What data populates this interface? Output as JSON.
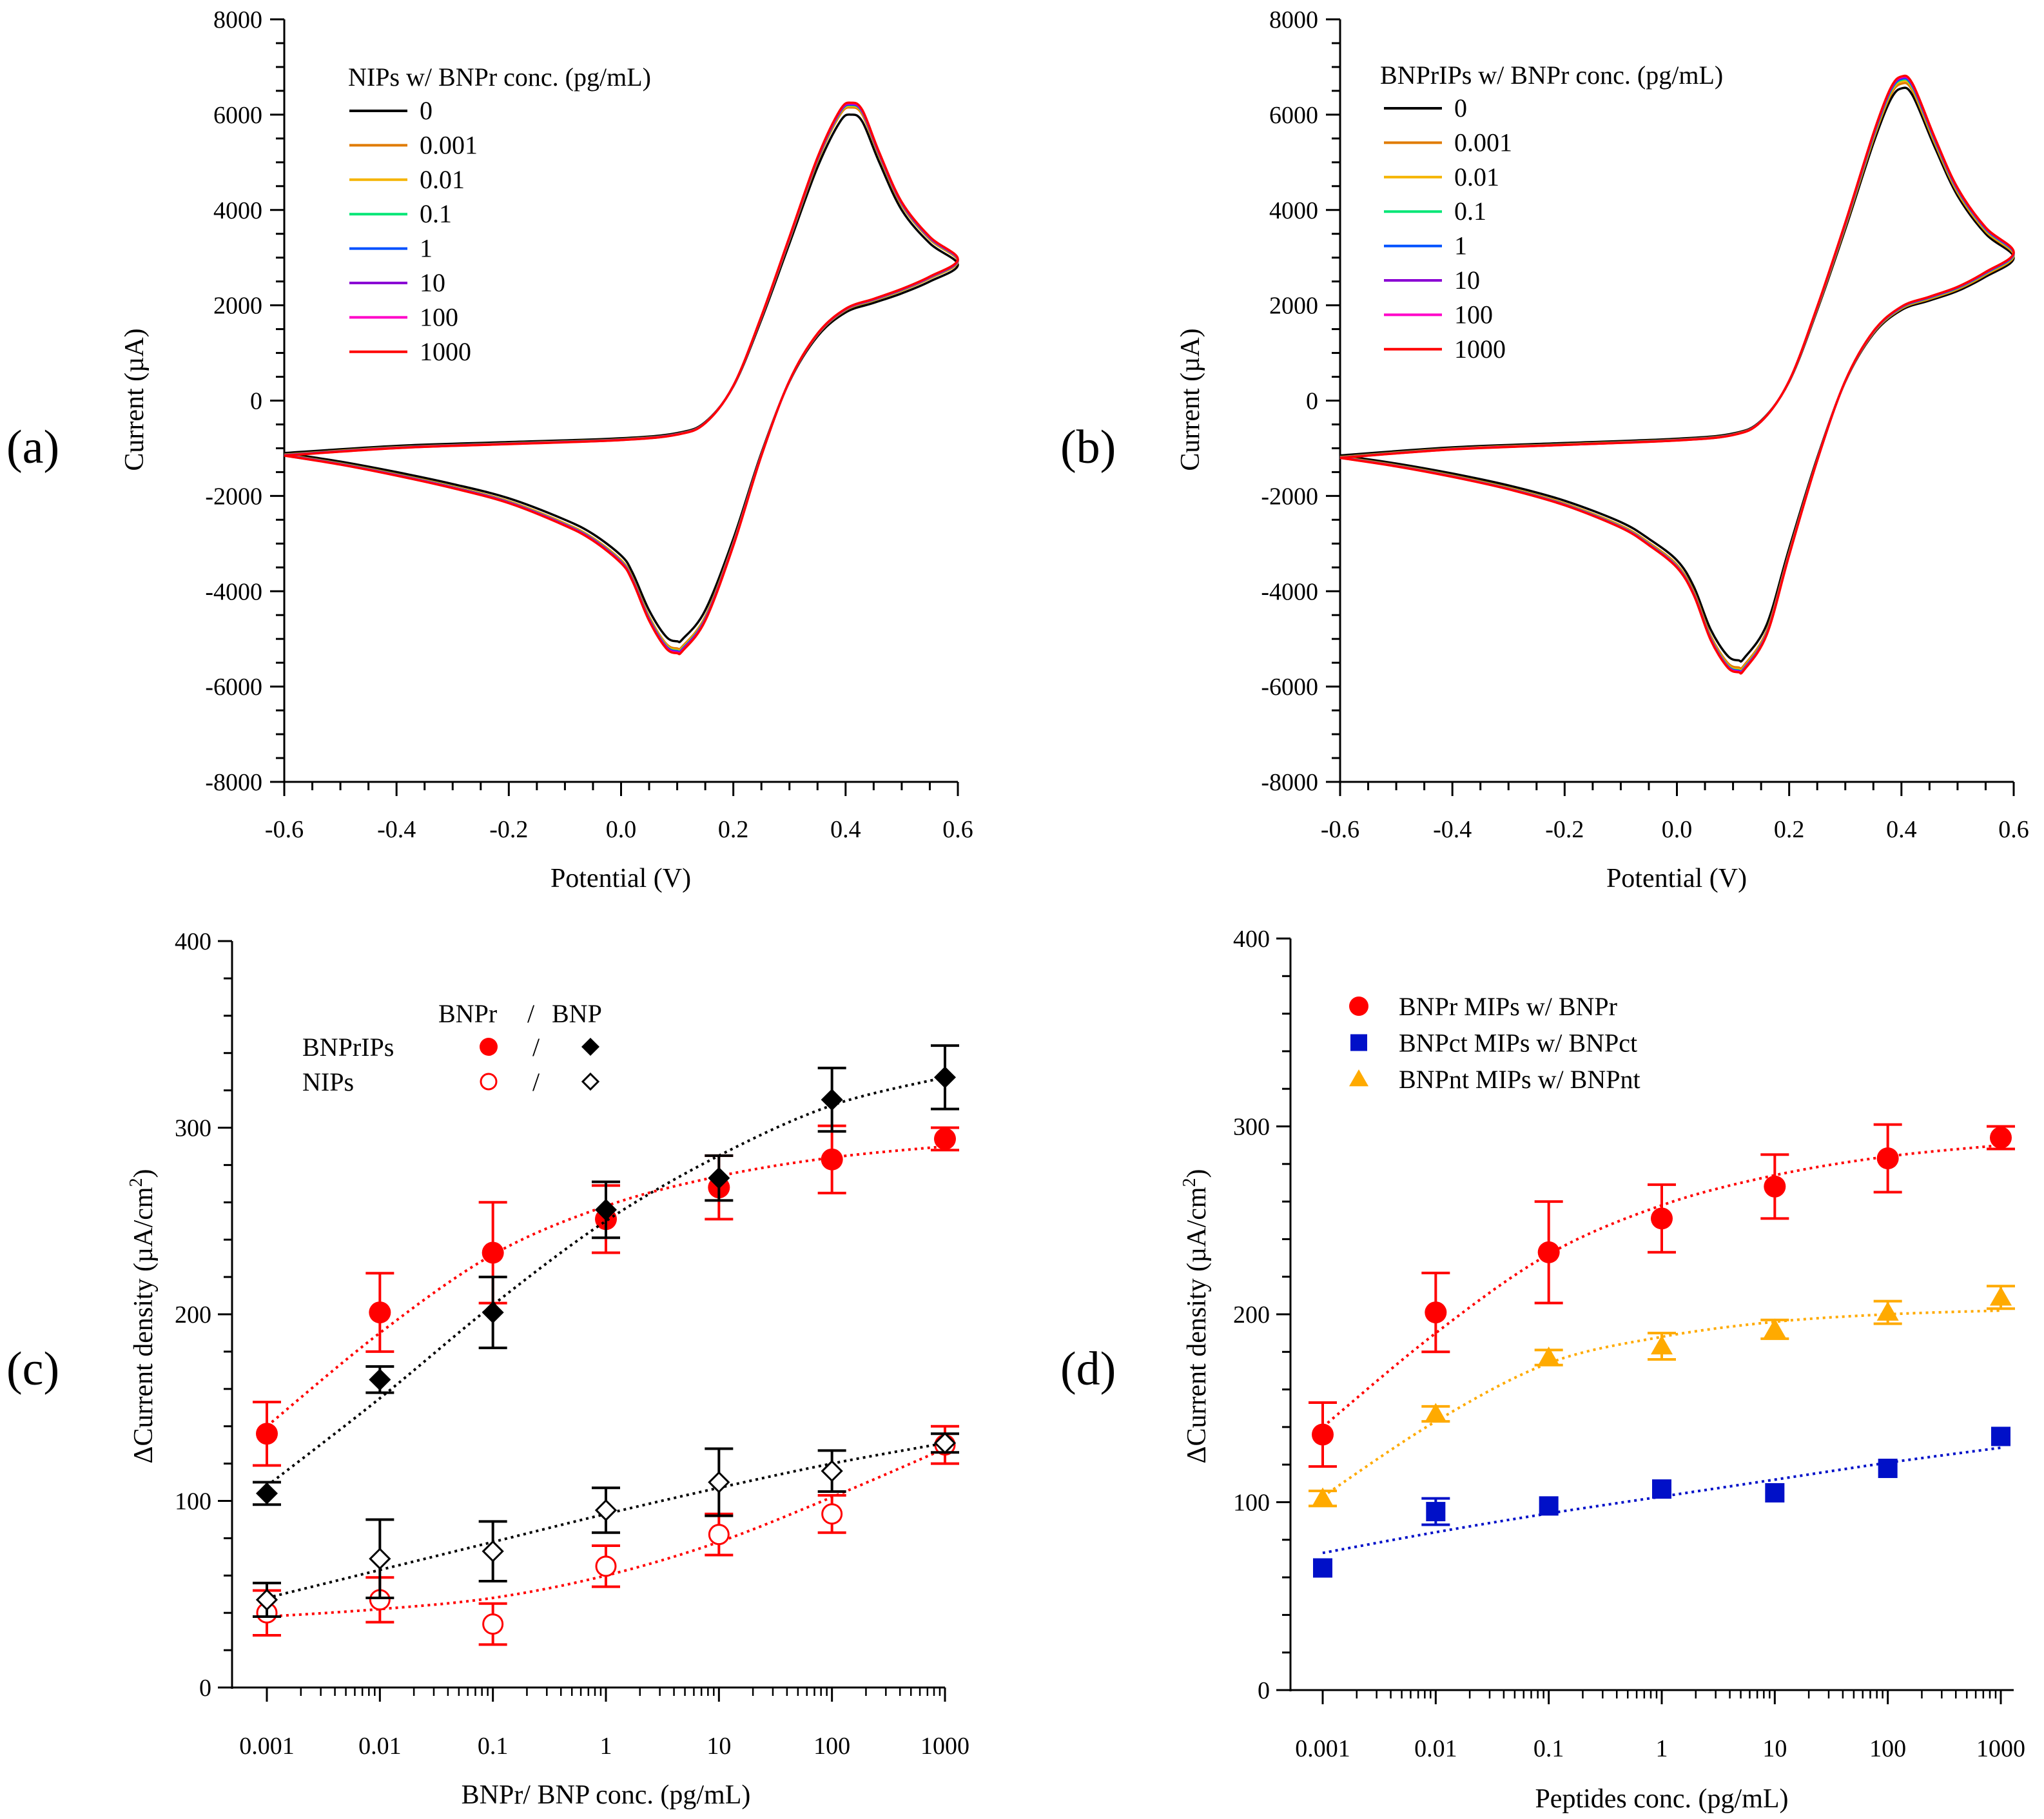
{
  "chart_data": [
    {
      "id": "a",
      "type": "line",
      "panel_label": "(a)",
      "xlabel": "Potential (V)",
      "ylabel": "Current (µA)",
      "xlim": [
        -0.6,
        0.6
      ],
      "ylim": [
        -8000,
        8000
      ],
      "xticks": [
        -0.6,
        -0.4,
        -0.2,
        0.0,
        0.2,
        0.4,
        0.6
      ],
      "xtick_labels": [
        "-0.6",
        "-0.4",
        "-0.2",
        "0.0",
        "0.2",
        "0.4",
        "0.6"
      ],
      "yticks": [
        -8000,
        -6000,
        -4000,
        -2000,
        0,
        2000,
        4000,
        6000,
        8000
      ],
      "ytick_labels": [
        "-8000",
        "-6000",
        "-4000",
        "-2000",
        "0",
        "2000",
        "4000",
        "6000",
        "8000"
      ],
      "legend_title": "NIPs w/ BNPr conc. (pg/mL)",
      "series": [
        {
          "name": "0",
          "color": "#000000",
          "anodic_peak": 6000,
          "cathodic_peak": -5050
        },
        {
          "name": "0.001",
          "color": "#e07b00",
          "anodic_peak": 6150,
          "cathodic_peak": -5200
        },
        {
          "name": "0.01",
          "color": "#f5b400",
          "anodic_peak": 6180,
          "cathodic_peak": -5230
        },
        {
          "name": "0.1",
          "color": "#00e676",
          "anodic_peak": 6200,
          "cathodic_peak": -5250
        },
        {
          "name": "1",
          "color": "#0050ff",
          "anodic_peak": 6210,
          "cathodic_peak": -5260
        },
        {
          "name": "10",
          "color": "#8a00d4",
          "anodic_peak": 6220,
          "cathodic_peak": -5270
        },
        {
          "name": "100",
          "color": "#ff00c8",
          "anodic_peak": 6240,
          "cathodic_peak": -5290
        },
        {
          "name": "1000",
          "color": "#ff0000",
          "anodic_peak": 6250,
          "cathodic_peak": -5300
        }
      ],
      "template_forward": [
        [
          -0.6,
          -1100
        ],
        [
          -0.4,
          -950
        ],
        [
          -0.2,
          -870
        ],
        [
          0,
          -790
        ],
        [
          0.1,
          -680
        ],
        [
          0.15,
          -450
        ],
        [
          0.2,
          300
        ],
        [
          0.25,
          1700
        ],
        [
          0.3,
          3300
        ],
        [
          0.35,
          4900
        ],
        [
          0.39,
          5850
        ],
        [
          0.41,
          6000
        ],
        [
          0.43,
          5850
        ],
        [
          0.46,
          5000
        ],
        [
          0.5,
          4000
        ],
        [
          0.55,
          3300
        ],
        [
          0.6,
          2850
        ]
      ],
      "template_reverse": [
        [
          0.6,
          2850
        ],
        [
          0.55,
          2500
        ],
        [
          0.5,
          2250
        ],
        [
          0.45,
          2050
        ],
        [
          0.4,
          1850
        ],
        [
          0.35,
          1350
        ],
        [
          0.3,
          400
        ],
        [
          0.25,
          -1100
        ],
        [
          0.2,
          -2900
        ],
        [
          0.15,
          -4400
        ],
        [
          0.11,
          -5000
        ],
        [
          0.1,
          -5050
        ],
        [
          0.08,
          -4950
        ],
        [
          0.05,
          -4400
        ],
        [
          0.02,
          -3600
        ],
        [
          0,
          -3250
        ],
        [
          -0.05,
          -2800
        ],
        [
          -0.1,
          -2500
        ],
        [
          -0.2,
          -2050
        ],
        [
          -0.3,
          -1750
        ],
        [
          -0.4,
          -1500
        ],
        [
          -0.5,
          -1280
        ],
        [
          -0.6,
          -1100
        ]
      ]
    },
    {
      "id": "b",
      "type": "line",
      "panel_label": "(b)",
      "xlabel": "Potential (V)",
      "ylabel": "Current (µA)",
      "xlim": [
        -0.6,
        0.6
      ],
      "ylim": [
        -8000,
        8000
      ],
      "xticks": [
        -0.6,
        -0.4,
        -0.2,
        0.0,
        0.2,
        0.4,
        0.6
      ],
      "xtick_labels": [
        "-0.6",
        "-0.4",
        "-0.2",
        "0.0",
        "0.2",
        "0.4",
        "0.6"
      ],
      "yticks": [
        -8000,
        -6000,
        -4000,
        -2000,
        0,
        2000,
        4000,
        6000,
        8000
      ],
      "ytick_labels": [
        "-8000",
        "-6000",
        "-4000",
        "-2000",
        "0",
        "2000",
        "4000",
        "6000",
        "8000"
      ],
      "legend_title": "BNPrIPs w/ BNPr conc. (pg/mL)",
      "series": [
        {
          "name": "0",
          "color": "#000000",
          "anodic_peak": 6550,
          "cathodic_peak": -5450
        },
        {
          "name": "0.001",
          "color": "#e07b00",
          "anodic_peak": 6650,
          "cathodic_peak": -5600
        },
        {
          "name": "0.01",
          "color": "#f5b400",
          "anodic_peak": 6700,
          "cathodic_peak": -5640
        },
        {
          "name": "0.1",
          "color": "#00e676",
          "anodic_peak": 6730,
          "cathodic_peak": -5660
        },
        {
          "name": "1",
          "color": "#0050ff",
          "anodic_peak": 6750,
          "cathodic_peak": -5670
        },
        {
          "name": "10",
          "color": "#8a00d4",
          "anodic_peak": 6770,
          "cathodic_peak": -5680
        },
        {
          "name": "100",
          "color": "#ff00c8",
          "anodic_peak": 6790,
          "cathodic_peak": -5690
        },
        {
          "name": "1000",
          "color": "#ff0000",
          "anodic_peak": 6800,
          "cathodic_peak": -5700
        }
      ],
      "template_forward": [
        [
          -0.6,
          -1150
        ],
        [
          -0.4,
          -980
        ],
        [
          -0.2,
          -890
        ],
        [
          0,
          -800
        ],
        [
          0.1,
          -690
        ],
        [
          0.15,
          -420
        ],
        [
          0.2,
          400
        ],
        [
          0.25,
          1900
        ],
        [
          0.3,
          3600
        ],
        [
          0.35,
          5400
        ],
        [
          0.38,
          6300
        ],
        [
          0.4,
          6550
        ],
        [
          0.42,
          6400
        ],
        [
          0.46,
          5300
        ],
        [
          0.5,
          4300
        ],
        [
          0.55,
          3500
        ],
        [
          0.6,
          3000
        ]
      ],
      "template_reverse": [
        [
          0.6,
          3000
        ],
        [
          0.55,
          2600
        ],
        [
          0.5,
          2300
        ],
        [
          0.45,
          2100
        ],
        [
          0.4,
          1900
        ],
        [
          0.35,
          1400
        ],
        [
          0.3,
          400
        ],
        [
          0.25,
          -1200
        ],
        [
          0.2,
          -3100
        ],
        [
          0.16,
          -4700
        ],
        [
          0.12,
          -5400
        ],
        [
          0.11,
          -5450
        ],
        [
          0.09,
          -5350
        ],
        [
          0.06,
          -4800
        ],
        [
          0.03,
          -3900
        ],
        [
          0,
          -3350
        ],
        [
          -0.05,
          -2900
        ],
        [
          -0.1,
          -2550
        ],
        [
          -0.2,
          -2100
        ],
        [
          -0.3,
          -1780
        ],
        [
          -0.4,
          -1530
        ],
        [
          -0.5,
          -1320
        ],
        [
          -0.6,
          -1150
        ]
      ]
    },
    {
      "id": "c",
      "type": "scatter",
      "panel_label": "(c)",
      "xlabel": "BNPr/ BNP conc. (pg/mL)",
      "ylabel": "ΔCurrent density (µA/cm",
      "ylabel_sup": "2",
      "ylabel_end": ")",
      "xscale": "log",
      "x": [
        0.001,
        0.01,
        0.1,
        1,
        10,
        100,
        1000
      ],
      "xtick_labels": [
        "0.001",
        "0.01",
        "0.1",
        "1",
        "10",
        "100",
        "1000"
      ],
      "ylim": [
        0,
        400
      ],
      "yticks": [
        0,
        100,
        200,
        300,
        400
      ],
      "ytick_labels": [
        "0",
        "100",
        "200",
        "300",
        "400"
      ],
      "legend": {
        "col1": "BNPr",
        "sep": "/",
        "col2": "BNP",
        "row1": "BNPrIPs",
        "row2": "NIPs"
      },
      "series": [
        {
          "name": "BNPrIPs w/ BNPr",
          "marker": "circle-filled",
          "color": "#ff0000",
          "values": [
            136,
            201,
            233,
            251,
            268,
            283,
            294
          ],
          "errors": [
            17,
            21,
            27,
            18,
            17,
            18,
            6
          ],
          "fit": [
            140,
            190,
            232,
            258,
            274,
            284,
            290
          ]
        },
        {
          "name": "BNPrIPs w/ BNP",
          "marker": "diamond-filled",
          "color": "#000000",
          "values": [
            104,
            165,
            201,
            256,
            273,
            315,
            327
          ],
          "errors": [
            6,
            7,
            19,
            15,
            12,
            17,
            17
          ],
          "fit": [
            108,
            155,
            205,
            250,
            285,
            312,
            327
          ]
        },
        {
          "name": "NIPs w/ BNPr",
          "marker": "circle-open",
          "color": "#ff0000",
          "values": [
            40,
            47,
            34,
            65,
            82,
            93,
            130
          ],
          "errors": [
            12,
            12,
            11,
            11,
            11,
            10,
            10
          ],
          "fit": [
            38,
            42,
            48,
            60,
            78,
            102,
            128
          ]
        },
        {
          "name": "NIPs w/ BNP",
          "marker": "diamond-open",
          "color": "#000000",
          "values": [
            47,
            69,
            73,
            95,
            110,
            116,
            131
          ],
          "errors": [
            9,
            21,
            16,
            12,
            18,
            11,
            5
          ],
          "fit": [
            48,
            63,
            78,
            93,
            107,
            120,
            131
          ]
        }
      ]
    },
    {
      "id": "d",
      "type": "scatter",
      "panel_label": "(d)",
      "xlabel": "Peptides conc. (pg/mL)",
      "ylabel": "ΔCurrent density (µA/cm",
      "ylabel_sup": "2",
      "ylabel_end": ")",
      "xscale": "log",
      "x": [
        0.001,
        0.01,
        0.1,
        1,
        10,
        100,
        1000
      ],
      "xtick_labels": [
        "0.001",
        "0.01",
        "0.1",
        "1",
        "10",
        "100",
        "1000"
      ],
      "ylim": [
        0,
        400
      ],
      "yticks": [
        0,
        100,
        200,
        300,
        400
      ],
      "ytick_labels": [
        "0",
        "100",
        "200",
        "300",
        "400"
      ],
      "series": [
        {
          "name": "BNPr MIPs w/ BNPr",
          "marker": "circle-filled",
          "color": "#ff0000",
          "values": [
            136,
            201,
            233,
            251,
            268,
            283,
            294
          ],
          "errors": [
            17,
            21,
            27,
            18,
            17,
            18,
            6
          ],
          "fit": [
            140,
            190,
            232,
            258,
            274,
            284,
            290
          ]
        },
        {
          "name": "BNPct MIPs w/ BNPct",
          "marker": "square-filled",
          "color": "#0010c8",
          "values": [
            65,
            95,
            98,
            107,
            105,
            118,
            135
          ],
          "errors": [
            0,
            7,
            0,
            0,
            0,
            0,
            0
          ],
          "fit": [
            73,
            84,
            94,
            103,
            112,
            121,
            129
          ]
        },
        {
          "name": "BNPnt MIPs w/ BNPnt",
          "marker": "triangle-filled",
          "color": "#ffaa00",
          "values": [
            102,
            147,
            177,
            183,
            192,
            201,
            209
          ],
          "errors": [
            4,
            4,
            4,
            7,
            5,
            6,
            6
          ],
          "fit": [
            103,
            143,
            174,
            188,
            196,
            200,
            202
          ]
        }
      ]
    }
  ]
}
